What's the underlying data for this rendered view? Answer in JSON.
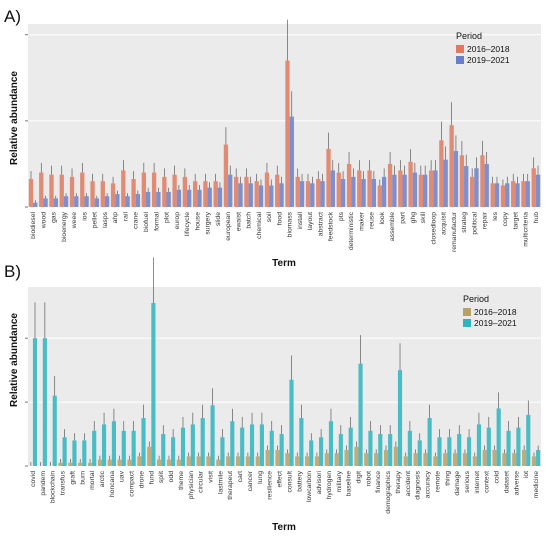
{
  "panels": [
    {
      "label": "A)",
      "chart_data": {
        "type": "bar",
        "title": "",
        "xlabel": "Term",
        "ylabel": "Relative abundance",
        "legend": {
          "title": "Period",
          "placement": "top-right"
        },
        "categories": [
          "biodiesel",
          "wood",
          "gas",
          "bioenergy",
          "weee",
          "ios",
          "pellet",
          "lasps",
          "ahp",
          "rail",
          "crane",
          "biofuel",
          "formal",
          "plot",
          "europ",
          "lifecycle",
          "house",
          "surgery",
          "slide",
          "european",
          "ewaist",
          "batch",
          "chemical",
          "soil",
          "food",
          "biomass",
          "install",
          "layout",
          "abstract",
          "feedstock",
          "pts",
          "deterministic",
          "maker",
          "reuse",
          "look",
          "assemble",
          "part",
          "ghg",
          "skill",
          "closedloop",
          "acquisit",
          "remanufactur",
          "strateg",
          "political",
          "repair",
          "les",
          "copy",
          "target",
          "multicriteria",
          "hub"
        ],
        "series": [
          {
            "name": "2016–2018",
            "color": "#e07a5f",
            "values": [
              0.13,
              0.16,
              0.15,
              0.15,
              0.14,
              0.16,
              0.12,
              0.12,
              0.11,
              0.17,
              0.13,
              0.16,
              0.16,
              0.14,
              0.15,
              0.14,
              0.12,
              0.12,
              0.12,
              0.29,
              0.14,
              0.14,
              0.12,
              0.16,
              0.15,
              0.68,
              0.14,
              0.12,
              0.13,
              0.27,
              0.16,
              0.2,
              0.17,
              0.17,
              0.1,
              0.2,
              0.17,
              0.21,
              0.15,
              0.17,
              0.31,
              0.38,
              0.24,
              0.14,
              0.24,
              0.11,
              0.1,
              0.12,
              0.12,
              0.18
            ]
          },
          {
            "name": "2019–2021",
            "color": "#6a7fc8",
            "values": [
              0.02,
              0.04,
              0.04,
              0.05,
              0.05,
              0.05,
              0.04,
              0.05,
              0.06,
              0.05,
              0.06,
              0.07,
              0.07,
              0.07,
              0.08,
              0.08,
              0.08,
              0.09,
              0.09,
              0.15,
              0.11,
              0.11,
              0.1,
              0.1,
              0.11,
              0.42,
              0.12,
              0.11,
              0.12,
              0.17,
              0.13,
              0.14,
              0.13,
              0.13,
              0.14,
              0.15,
              0.15,
              0.16,
              0.15,
              0.17,
              0.22,
              0.26,
              0.19,
              0.18,
              0.2,
              0.11,
              0.11,
              0.11,
              0.12,
              0.15
            ]
          }
        ]
      }
    },
    {
      "label": "B)",
      "chart_data": {
        "type": "bar",
        "title": "",
        "xlabel": "Term",
        "ylabel": "Relative abundance",
        "legend": {
          "title": "Period",
          "placement": "top-right"
        },
        "categories": [
          "covid",
          "pandem",
          "blockchain",
          "transfus",
          "graft",
          "burn",
          "mortal",
          "arctic",
          "honcana",
          "uav",
          "compact",
          "drone",
          "fund",
          "split",
          "odd",
          "theme",
          "physician",
          "circular",
          "visit",
          "lastmile",
          "therapeut",
          "cart",
          "cancer",
          "lung",
          "resilience",
          "effect",
          "consult",
          "battery",
          "lowcarbon",
          "advisori",
          "hydrogen",
          "military",
          "baseline",
          "digit",
          "robot",
          "finance",
          "demographics",
          "therapy",
          "accident",
          "diagnosis",
          "accuracy",
          "remote",
          "thing",
          "damage",
          "serious",
          "internet",
          "context",
          "cold",
          "dataset",
          "adverse",
          "iot",
          "medicine"
        ],
        "series": [
          {
            "name": "2016–2018",
            "color": "#b9a06a",
            "values": [
              0.0,
              0.0,
              0.0,
              0.01,
              0.01,
              0.01,
              0.01,
              0.02,
              0.02,
              0.02,
              0.02,
              0.03,
              0.06,
              0.02,
              0.02,
              0.02,
              0.03,
              0.03,
              0.03,
              0.02,
              0.03,
              0.03,
              0.03,
              0.03,
              0.05,
              0.05,
              0.04,
              0.03,
              0.03,
              0.03,
              0.04,
              0.04,
              0.05,
              0.06,
              0.04,
              0.04,
              0.05,
              0.06,
              0.03,
              0.04,
              0.04,
              0.03,
              0.04,
              0.04,
              0.04,
              0.03,
              0.05,
              0.05,
              0.04,
              0.04,
              0.05,
              0.03
            ]
          },
          {
            "name": "2019–2021",
            "color": "#2bb5c0",
            "values": [
              0.4,
              0.4,
              0.22,
              0.09,
              0.08,
              0.08,
              0.11,
              0.13,
              0.14,
              0.11,
              0.11,
              0.15,
              0.51,
              0.1,
              0.09,
              0.12,
              0.13,
              0.15,
              0.19,
              0.09,
              0.14,
              0.12,
              0.13,
              0.13,
              0.11,
              0.1,
              0.27,
              0.15,
              0.08,
              0.09,
              0.14,
              0.1,
              0.12,
              0.32,
              0.11,
              0.1,
              0.1,
              0.3,
              0.11,
              0.08,
              0.15,
              0.09,
              0.09,
              0.1,
              0.09,
              0.13,
              0.12,
              0.18,
              0.11,
              0.12,
              0.16,
              0.05
            ]
          }
        ]
      }
    }
  ]
}
